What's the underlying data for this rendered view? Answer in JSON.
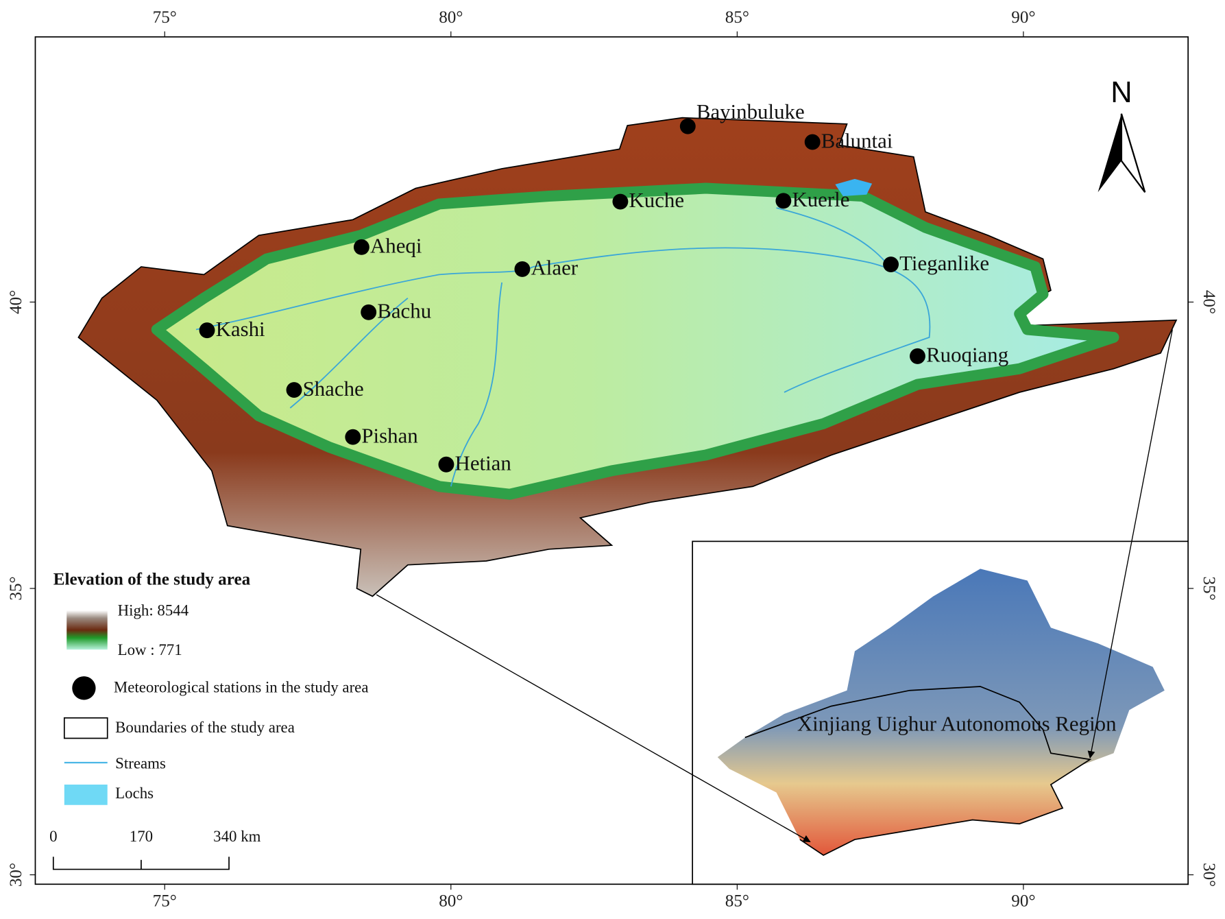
{
  "map": {
    "lon_labels": [
      "75°",
      "80°",
      "85°",
      "90°"
    ],
    "lat_labels": [
      "30°",
      "35°",
      "40°"
    ],
    "north": "N",
    "stations": [
      "Bayinbuluke",
      "Baluntai",
      "Kuche",
      "Kuerle",
      "Aheqi",
      "Alaer",
      "Tieganlike",
      "Bachu",
      "Kashi",
      "Ruoqiang",
      "Shache",
      "Pishan",
      "Hetian"
    ],
    "inset_label": "Xinjiang Uighur Autonomous Region",
    "legend": {
      "title": "Elevation of the study area",
      "high": "High: 8544",
      "low": "Low : 771",
      "stations": "Meteorological stations in the study area",
      "boundaries": "Boundaries of the study area",
      "streams": "Streams",
      "lochs": "Lochs"
    },
    "scale_bar": [
      "0",
      "170",
      "340 km"
    ]
  }
}
